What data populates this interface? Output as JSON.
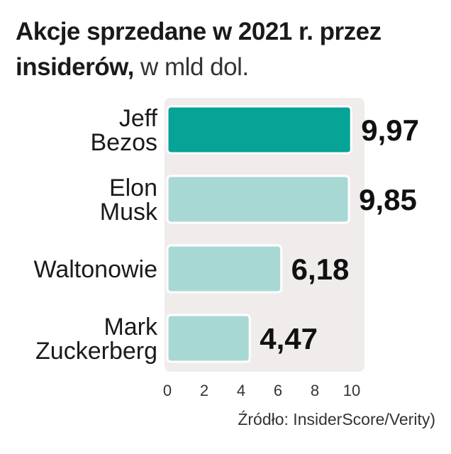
{
  "title": {
    "bold_line1": "Akcje sprzedane w 2021 r. przez",
    "bold_line2": "insiderów,",
    "unit": "w mld dol."
  },
  "source": "Źródło: InsiderScore/Verity)",
  "colors": {
    "highlight": "#06a396",
    "bar": "#a8d8d4",
    "bar_stroke": "#ffffff",
    "plot_bg": "#f0eceb"
  },
  "chart_data": {
    "type": "bar",
    "orientation": "horizontal",
    "categories": [
      [
        "Jeff",
        "Bezos"
      ],
      [
        "Elon",
        "Musk"
      ],
      [
        "Waltonowie"
      ],
      [
        "Mark",
        "Zuckerberg"
      ]
    ],
    "values": [
      9.97,
      9.85,
      6.18,
      4.47
    ],
    "value_labels": [
      "9,97",
      "9,85",
      "6,18",
      "4,47"
    ],
    "highlight_index": 0,
    "xlim": [
      0,
      10
    ],
    "xticks": [
      0,
      2,
      4,
      6,
      8,
      10
    ],
    "grid": false,
    "legend": "none"
  }
}
